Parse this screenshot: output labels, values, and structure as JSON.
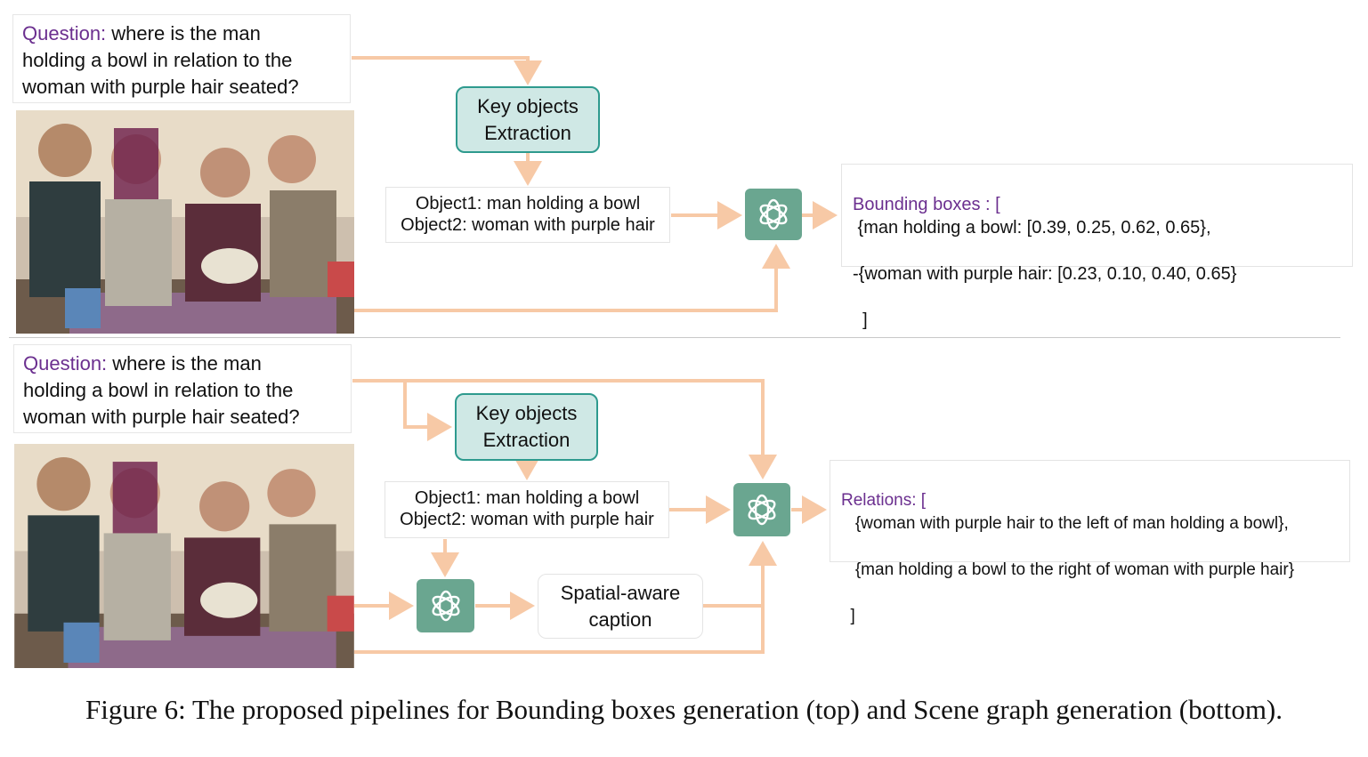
{
  "top": {
    "question": {
      "label": "Question:",
      "lines": [
        "where is the man",
        "holding  a bowl in relation to the",
        "woman with purple hair seated?"
      ]
    },
    "key_objects": {
      "line1": "Key objects",
      "line2": "Extraction"
    },
    "objects": {
      "line1": "Object1: man holding a bowl",
      "line2": "Object2: woman with purple hair"
    },
    "output": {
      "label": "Bounding boxes : [",
      "line1": " {man holding a bowl: [0.39, 0.25, 0.62, 0.65},",
      "line2": "-{woman with purple hair: [0.23, 0.10, 0.40, 0.65}",
      "line3": "  ]"
    }
  },
  "bottom": {
    "question": {
      "label": "Question:",
      "lines": [
        "where is the man",
        "holding  a bowl in relation to the",
        "woman with purple hair seated?"
      ]
    },
    "key_objects": {
      "line1": "Key objects",
      "line2": "Extraction"
    },
    "objects": {
      "line1": "Object1: man holding a bowl",
      "line2": "Object2: woman with purple hair"
    },
    "spatial_caption": {
      "line1": "Spatial-aware",
      "line2": "caption"
    },
    "output": {
      "label": "Relations: [",
      "line1": "   {woman with purple hair to the left of man holding a bowl},",
      "line2": "   {man holding a bowl to the right of woman with purple hair}",
      "line3": "  ]"
    }
  },
  "figure_caption": "Figure 6: The proposed pipelines for Bounding boxes generation (top) and Scene graph generation (bottom).",
  "colors": {
    "arrow": "#f7c9a6",
    "key_fill": "#cfe8e5",
    "key_border": "#2e9a8e",
    "gpt": "#6aa690",
    "label": "#6b2f8f"
  },
  "icons": {
    "gpt": "openai-logo-icon"
  }
}
